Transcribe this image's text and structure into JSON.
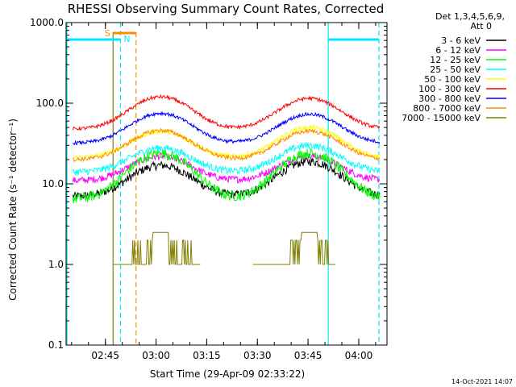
{
  "chart_data": {
    "type": "line",
    "title": "RHESSI Observing Summary Count Rates, Corrected",
    "xlabel": "Start Time (29-Apr-09 02:33:22)",
    "ylabel": "Corrected Count Rate (s⁻¹ detector⁻¹)",
    "yscale": "log",
    "ylim": [
      0.1,
      1000.0
    ],
    "xlim_minutes_after_start": [
      0,
      95
    ],
    "y_tick_labels": [
      "1000.0",
      "100.0",
      "10.0",
      "1.0",
      "0.1"
    ],
    "y_ticks": [
      1000,
      100,
      10,
      1,
      0.1
    ],
    "x_tick_labels": [
      "02:45",
      "03:00",
      "03:15",
      "03:30",
      "03:45",
      "04:00"
    ],
    "x_ticks_minutes": [
      11.63,
      26.63,
      41.63,
      56.63,
      71.63,
      86.63
    ],
    "legend_header": [
      "Det 1,3,4,5,6,9,",
      "Att 0"
    ],
    "legend_position": "outside-right",
    "series": [
      {
        "name": "3 - 6 keV",
        "color": "#000000",
        "base": 7.0,
        "peak1": 17,
        "peak2": 19,
        "noise": 0.12
      },
      {
        "name": "6 - 12 keV",
        "color": "#ff00ff",
        "base": 11.0,
        "peak1": 22,
        "peak2": 22,
        "noise": 0.1
      },
      {
        "name": "12 - 25 keV",
        "color": "#00ff00",
        "base": 6.5,
        "peak1": 24,
        "peak2": 24,
        "noise": 0.15
      },
      {
        "name": "25 - 50 keV",
        "color": "#00ffff",
        "base": 14.0,
        "peak1": 28,
        "peak2": 30,
        "noise": 0.1
      },
      {
        "name": "50 - 100 keV",
        "color": "#ffff00",
        "base": 21.0,
        "peak1": 45,
        "peak2": 50,
        "noise": 0.07
      },
      {
        "name": "100 - 300 keV",
        "color": "#ff0000",
        "base": 48.0,
        "peak1": 120,
        "peak2": 115,
        "noise": 0.05
      },
      {
        "name": "300 - 800 keV",
        "color": "#0000ff",
        "base": 32.0,
        "peak1": 75,
        "peak2": 73,
        "noise": 0.05
      },
      {
        "name": "800 - 7000 keV",
        "color": "#ff8c00",
        "base": 20.0,
        "peak1": 46,
        "peak2": 45,
        "noise": 0.06
      },
      {
        "name": "7000 - 15000 keV",
        "color": "#808000",
        "base": 1.0,
        "peak1": 2.5,
        "peak2": 2.5,
        "noise": 0.0
      }
    ],
    "orbit_markers": {
      "saa_label": "S",
      "night_label": "N",
      "cyan_solid_minutes": [
        -0.2,
        77.6
      ],
      "cyan_dashed_minutes": [
        16.1,
        92.6
      ],
      "orange_dashed_minute": 20.7,
      "olive_solid_minute": 13.9
    },
    "timestamp": "14-Oct-2021 14:07"
  },
  "colors": {
    "axis": "#000000",
    "cyan": "#00e5ff",
    "saa": "#ff8c00",
    "olive": "#808000"
  }
}
